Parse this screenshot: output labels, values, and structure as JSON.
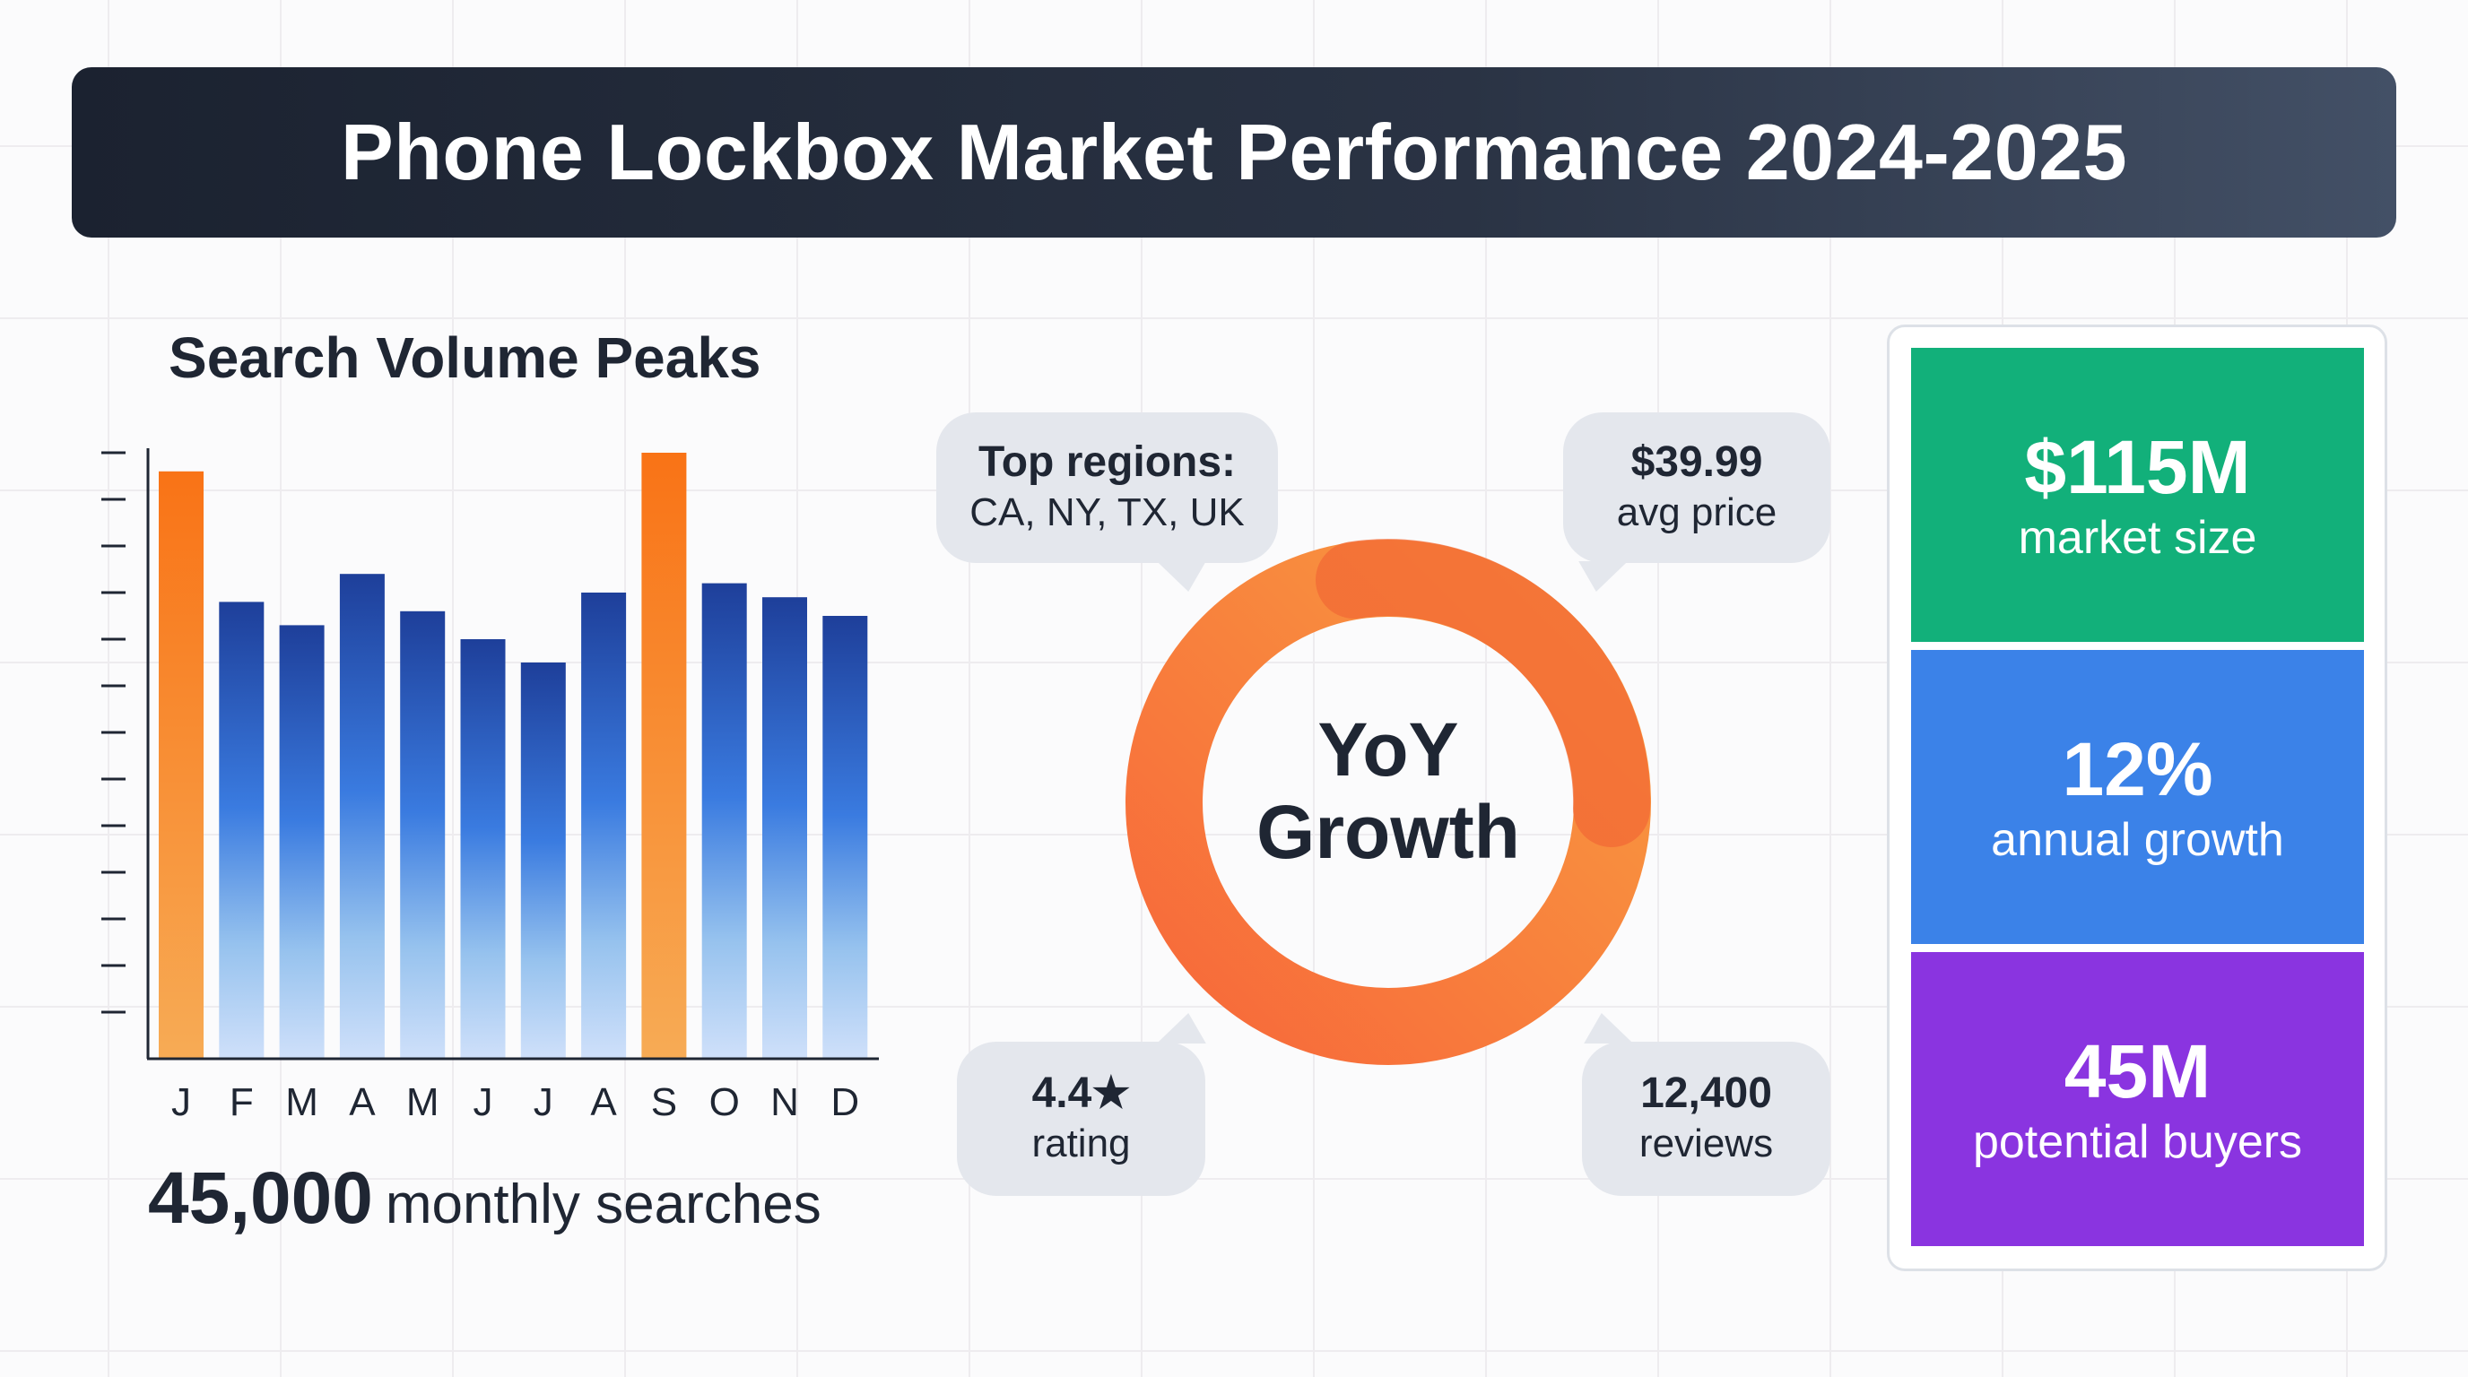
{
  "header": {
    "title": "Phone Lockbox Market Performance 2024-2025"
  },
  "search_panel": {
    "title": "Search Volume Peaks",
    "total_value": "45,000",
    "total_label": "monthly searches"
  },
  "chart_data": {
    "type": "bar",
    "title": "Search Volume Peaks",
    "categories": [
      "J",
      "F",
      "M",
      "A",
      "M",
      "J",
      "J",
      "A",
      "S",
      "O",
      "N",
      "D"
    ],
    "values": [
      12.6,
      9.8,
      9.3,
      10.4,
      9.6,
      9.0,
      8.5,
      10.0,
      13.0,
      10.2,
      9.9,
      9.5
    ],
    "highlighted": [
      "J",
      "S"
    ],
    "xlabel": "",
    "ylabel": "",
    "ylim": [
      0,
      13
    ],
    "y_ticks": 13,
    "tick_labels_shown": false,
    "grid": false,
    "colors": {
      "peak": "#f97316",
      "normal": "#1e40af"
    }
  },
  "donut": {
    "line1": "YoY",
    "line2": "Growth",
    "colors": {
      "ring": "#f98a3c",
      "highlight": "#f26a35"
    }
  },
  "callouts": {
    "regions": {
      "title": "Top regions:",
      "text": "CA, NY, TX, UK"
    },
    "price": {
      "title": "$39.99",
      "text": "avg price"
    },
    "rating": {
      "title": "4.4★",
      "text": "rating"
    },
    "reviews": {
      "title": "12,400",
      "text": "reviews"
    }
  },
  "kpis": [
    {
      "value": "$115M",
      "label": "market size",
      "color": "#12b07a"
    },
    {
      "value": "12%",
      "label": "annual growth",
      "color": "#3b82e8"
    },
    {
      "value": "45M",
      "label": "potential buyers",
      "color": "#8a34e0"
    }
  ]
}
